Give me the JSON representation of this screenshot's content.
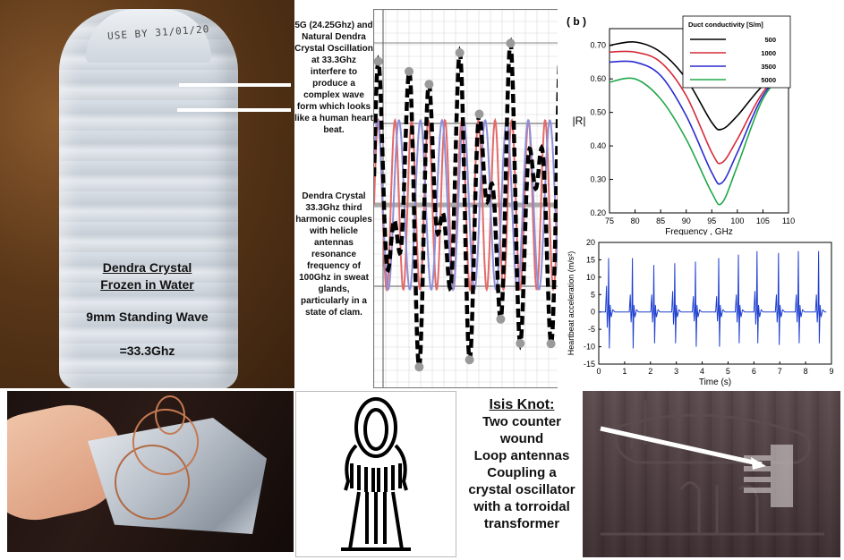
{
  "bottle": {
    "stamp": "USE BY 31/01/20",
    "caption_line1": "Dendra Crystal",
    "caption_line2": "Frozen in Water",
    "caption_wave": "9mm Standing Wave",
    "caption_freq": "=33.3Ghz"
  },
  "description": {
    "paragraph1": "5G (24.25Ghz) and Natural Dendra Crystal Oscillation at 33.3Ghz interfere to produce a complex wave form which looks like a human heart beat.",
    "paragraph2": "Dendra Crystal 33.3Ghz third harmonic couples with helicle antennas resonance frequency of 100Ghz in sweat glands, particularly in a state of clam."
  },
  "isis": {
    "heading": "Isis Knot:",
    "lines": [
      "Two counter",
      "wound",
      "Loop antennas",
      "Coupling a",
      "crystal oscillator",
      "with a torroidal",
      "transformer"
    ]
  },
  "colors": {
    "black": "#000000",
    "red": "#d62b3a",
    "blue": "#2b2bd1",
    "green": "#22a84a",
    "heart": "#1f3fd0",
    "wave_red": "#e26a6a",
    "wave_blue": "#8f8fd8"
  },
  "chart_data": [
    {
      "type": "line",
      "panel_label": "( b )",
      "xlabel": "Frequency , GHz",
      "ylabel": "|R|",
      "xlim": [
        75,
        110
      ],
      "ylim": [
        0.2,
        0.75
      ],
      "xticks": [
        75,
        80,
        85,
        90,
        95,
        100,
        105,
        110
      ],
      "yticks": [
        0.2,
        0.3,
        0.4,
        0.5,
        0.6,
        0.7
      ],
      "ytick_labels": [
        "0.20",
        "0.30",
        "0.40",
        "0.50",
        "0.60",
        "0.70"
      ],
      "legend_title": "Duct conductivity  [S/m]",
      "legend_position": "top-right",
      "x": [
        75,
        80,
        85,
        90,
        95,
        97,
        100,
        105,
        110
      ],
      "series": [
        {
          "name": "500",
          "color": "#000000",
          "values": [
            0.7,
            0.71,
            0.68,
            0.6,
            0.47,
            0.45,
            0.49,
            0.58,
            0.63
          ]
        },
        {
          "name": "1000",
          "color": "#d62b3a",
          "values": [
            0.68,
            0.68,
            0.65,
            0.55,
            0.38,
            0.35,
            0.42,
            0.56,
            0.63
          ]
        },
        {
          "name": "3500",
          "color": "#2b2bd1",
          "values": [
            0.65,
            0.65,
            0.61,
            0.49,
            0.32,
            0.29,
            0.38,
            0.55,
            0.63
          ]
        },
        {
          "name": "5000",
          "color": "#22a84a",
          "values": [
            0.59,
            0.6,
            0.54,
            0.42,
            0.26,
            0.23,
            0.34,
            0.54,
            0.63
          ]
        }
      ]
    },
    {
      "type": "line",
      "xlabel": "Time (s)",
      "ylabel": "Heartbeat acceleration (m/s²)",
      "xlim": [
        0,
        9
      ],
      "ylim": [
        -15,
        20
      ],
      "xticks": [
        0,
        1,
        2,
        3,
        4,
        5,
        6,
        7,
        8,
        9
      ],
      "yticks": [
        -15,
        -10,
        -5,
        0,
        5,
        10,
        15,
        20
      ],
      "beat_times": [
        0.38,
        1.3,
        2.13,
        2.94,
        3.74,
        4.64,
        5.4,
        6.12,
        6.95,
        7.72,
        8.5
      ],
      "beat_peaks": [
        15.5,
        15.5,
        13.5,
        14,
        14.5,
        15.5,
        16.5,
        17.5,
        17,
        17.5,
        17.5
      ],
      "beat_troughs": [
        -10.5,
        -10.5,
        -9,
        -9,
        -10,
        -10,
        -9,
        -9,
        -9.5,
        -9,
        -9
      ],
      "precursor_peaks": [
        7.5,
        5,
        5,
        6,
        4.5,
        4.5,
        5,
        6,
        5,
        5,
        5
      ]
    },
    {
      "type": "line",
      "x_cycles": 7.2,
      "series": [
        {
          "name": "",
          "style": "dashed-black",
          "amplitude": 1.0
        },
        {
          "name": "",
          "style": "red",
          "amplitude": 0.52
        },
        {
          "name": "",
          "style": "blue",
          "amplitude": 0.52
        }
      ]
    }
  ]
}
